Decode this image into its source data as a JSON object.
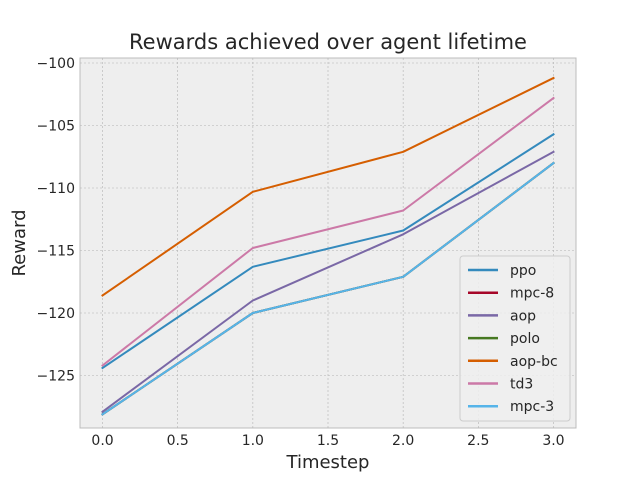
{
  "chart_data": {
    "type": "line",
    "title": "Rewards achieved over agent lifetime",
    "xlabel": "Timestep",
    "ylabel": "Reward",
    "xlim": [
      -0.15,
      3.15
    ],
    "ylim": [
      -129.2,
      -99.6
    ],
    "xticks": [
      0.0,
      0.5,
      1.0,
      1.5,
      2.0,
      2.5,
      3.0
    ],
    "xtick_labels": [
      "0.0",
      "0.5",
      "1.0",
      "1.5",
      "2.0",
      "2.5",
      "3.0"
    ],
    "yticks": [
      -100,
      -105,
      -110,
      -115,
      -120,
      -125
    ],
    "ytick_labels": [
      "−100",
      "−105",
      "−110",
      "−115",
      "−120",
      "−125"
    ],
    "grid": true,
    "legend_position": "lower-right",
    "x": [
      0,
      1,
      2,
      3
    ],
    "series": [
      {
        "name": "ppo",
        "color": "#348abd",
        "values": [
          -124.4,
          -116.3,
          -113.4,
          -105.7
        ]
      },
      {
        "name": "mpc-8",
        "color": "#a60628",
        "values": [
          -128.1,
          -120.0,
          -117.1,
          -108.0
        ]
      },
      {
        "name": "aop",
        "color": "#7a68a6",
        "values": [
          -127.9,
          -119.0,
          -113.7,
          -107.1
        ]
      },
      {
        "name": "polo",
        "color": "#467821",
        "values": [
          -128.1,
          -120.0,
          -117.1,
          -108.0
        ]
      },
      {
        "name": "aop-bc",
        "color": "#d55e00",
        "values": [
          -118.6,
          -110.3,
          -107.1,
          -101.2
        ]
      },
      {
        "name": "td3",
        "color": "#cc79a7",
        "values": [
          -124.2,
          -114.8,
          -111.8,
          -102.8
        ]
      },
      {
        "name": "mpc-3",
        "color": "#56b4e9",
        "values": [
          -128.1,
          -120.0,
          -117.1,
          -108.0
        ]
      }
    ]
  }
}
